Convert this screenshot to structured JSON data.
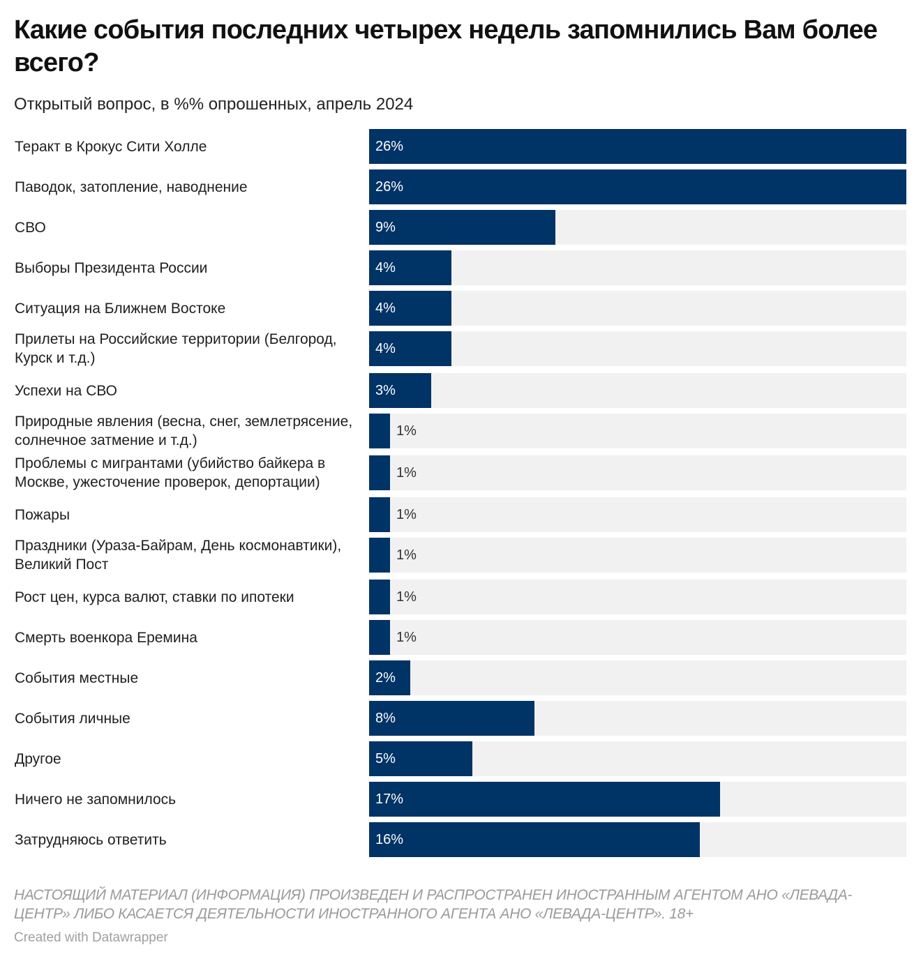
{
  "chart_data": {
    "type": "bar",
    "orientation": "horizontal",
    "title": "Какие события последних четырех недель запомнились Вам более всего?",
    "subtitle": "Открытый вопрос, в %% опрошенных, апрель 2024",
    "categories": [
      "Теракт в Крокус Сити Холле",
      "Паводок, затопление, наводнение",
      "СВО",
      "Выборы Президента России",
      "Ситуация на Ближнем Востоке",
      "Прилеты на Российские территории (Белгород, Курск и т.д.)",
      "Успехи на СВО",
      "Природные явления (весна, снег, землетрясение, солнечное затмение и т.д.)",
      "Проблемы с мигрантами (убийство байкера в Москве, ужесточение проверок, депортации)",
      "Пожары",
      "Праздники (Ураза-Байрам, День космонавтики), Великий Пост",
      "Рост цен, курса валют, ставки по ипотеки",
      "Смерть военкора Еремина",
      "События местные",
      "События личные",
      "Другое",
      "Ничего не запомнилось",
      "Затрудняюсь ответить"
    ],
    "values": [
      26,
      26,
      9,
      4,
      4,
      4,
      3,
      1,
      1,
      1,
      1,
      1,
      1,
      2,
      8,
      5,
      17,
      16
    ],
    "value_labels": [
      "26%",
      "26%",
      "9%",
      "4%",
      "4%",
      "4%",
      "3%",
      "1%",
      "1%",
      "1%",
      "1%",
      "1%",
      "1%",
      "2%",
      "8%",
      "5%",
      "17%",
      "16%"
    ],
    "xlim": [
      0,
      26
    ],
    "bar_color": "#003366",
    "background_color": "#f1f1f1",
    "grid": false
  },
  "notes": "НАСТОЯЩИЙ МАТЕРИАЛ (ИНФОРМАЦИЯ) ПРОИЗВЕДЕН И РАСПРОСТРАНЕН ИНОСТРАННЫМ АГЕНТОМ АНО «ЛЕВАДА-ЦЕНТР» ЛИБО КАСАЕТСЯ ДЕЯТЕЛЬНОСТИ ИНОСТРАННОГО АГЕНТА АНО «ЛЕВАДА-ЦЕНТР». 18+",
  "credit": "Created with Datawrapper"
}
